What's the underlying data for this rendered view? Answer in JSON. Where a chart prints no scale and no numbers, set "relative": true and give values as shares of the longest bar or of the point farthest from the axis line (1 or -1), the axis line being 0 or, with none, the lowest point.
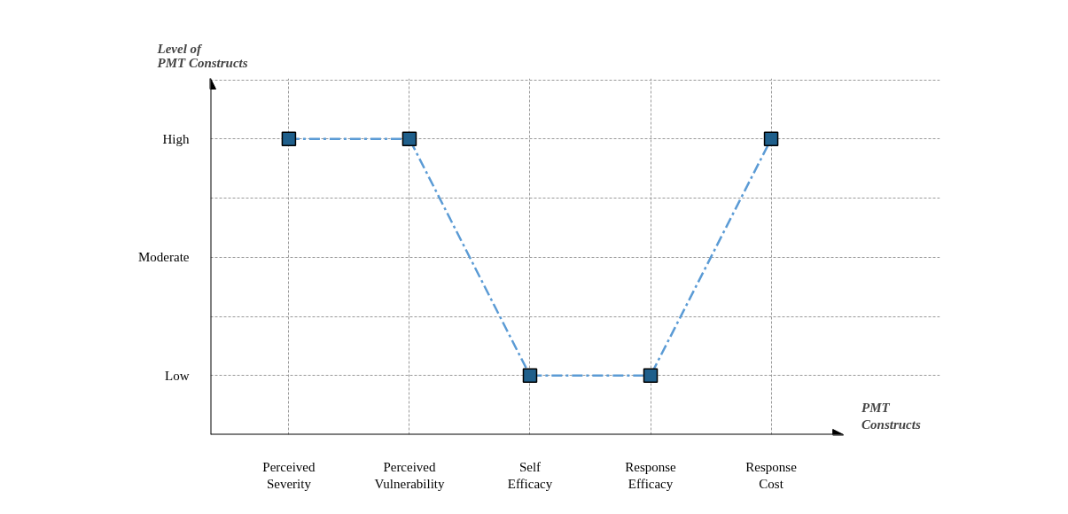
{
  "chart_data": {
    "type": "line",
    "xlabel": "PMT Constructs",
    "relative": true,
    "categories": [
      "Perceived Severity",
      "Perceived Vulnerability",
      "Self Efficacy",
      "Response Efficacy",
      "Response Cost"
    ],
    "series": [
      {
        "color": "#5b9bd5",
        "values": [
          1,
          1,
          0.2,
          0.2,
          1
        ]
      }
    ],
    "annotations": [
      "Level of PMT Constructs",
      "High",
      "Moderate",
      "Low"
    ],
    "grid": true,
    "marker": "square",
    "line_style": "dashed"
  }
}
